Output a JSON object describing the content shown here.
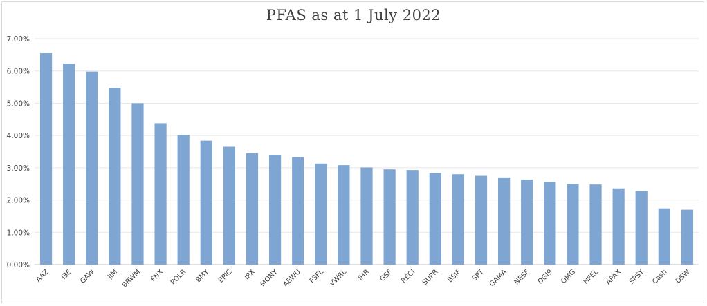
{
  "chart_data": {
    "type": "bar",
    "title": "PFAS as at 1 July 2022",
    "xlabel": "",
    "ylabel": "",
    "ylim": [
      0,
      0.07
    ],
    "yticks": [
      0,
      0.01,
      0.02,
      0.03,
      0.04,
      0.05,
      0.06,
      0.07
    ],
    "ytick_labels": [
      "0.00%",
      "1.00%",
      "2.00%",
      "3.00%",
      "4.00%",
      "5.00%",
      "6.00%",
      "7.00%"
    ],
    "grid": true,
    "legend": "none",
    "bar_color": "#7fa6d3",
    "categories": [
      "AAZ",
      "I3E",
      "GAW",
      "JIM",
      "BRWM",
      "FNX",
      "POLR",
      "BMY",
      "EPIC",
      "IPX",
      "MONY",
      "AEWU",
      "FSFL",
      "VWRL",
      "IHR",
      "GSF",
      "RECI",
      "SUPR",
      "BSIF",
      "SPT",
      "GAMA",
      "NESF",
      "DGI9",
      "OMG",
      "HFEL",
      "APAX",
      "SPSY",
      "Cash",
      "DSW"
    ],
    "values": [
      0.0655,
      0.0623,
      0.0598,
      0.0548,
      0.05,
      0.0438,
      0.0402,
      0.0384,
      0.0365,
      0.0345,
      0.034,
      0.0333,
      0.0313,
      0.0308,
      0.0301,
      0.0295,
      0.0293,
      0.0284,
      0.028,
      0.0275,
      0.027,
      0.0263,
      0.0256,
      0.025,
      0.0248,
      0.0236,
      0.0228,
      0.0174,
      0.017
    ]
  }
}
